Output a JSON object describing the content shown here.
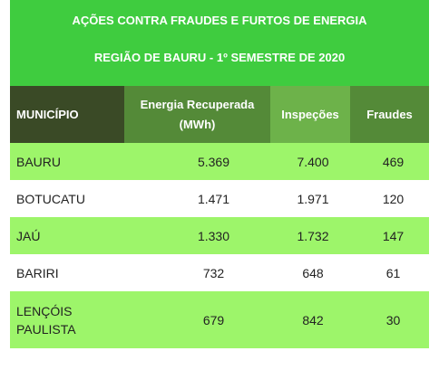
{
  "title": {
    "line1": "AÇÕES CONTRA FRAUDES E FURTOS DE ENERGIA",
    "line2": "REGIÃO DE BAURU - 1º SEMESTRE DE 2020"
  },
  "table": {
    "headers": {
      "municipio": "MUNICÍPIO",
      "energia_l1": "Energia Recuperada",
      "energia_l2": "(MWh)",
      "inspecoes": "Inspeções",
      "fraudes": "Fraudes"
    },
    "rows": [
      {
        "municipio": "BAURU",
        "energia": "5.369",
        "inspecoes": "7.400",
        "fraudes": "469"
      },
      {
        "municipio": "BOTUCATU",
        "energia": "1.471",
        "inspecoes": "1.971",
        "fraudes": "120"
      },
      {
        "municipio": "JAÚ",
        "energia": "1.330",
        "inspecoes": "1.732",
        "fraudes": "147"
      },
      {
        "municipio": "BARIRI",
        "energia": "732",
        "inspecoes": "648",
        "fraudes": "61"
      },
      {
        "municipio": "LENÇÓIS PAULISTA",
        "energia": "679",
        "inspecoes": "842",
        "fraudes": "30"
      }
    ]
  },
  "colors": {
    "title_bg": "#3fcc3f",
    "header_dark": "#3a4a26",
    "header_mid": "#548a38",
    "header_light": "#6db24a",
    "row_green": "#9df56a"
  }
}
